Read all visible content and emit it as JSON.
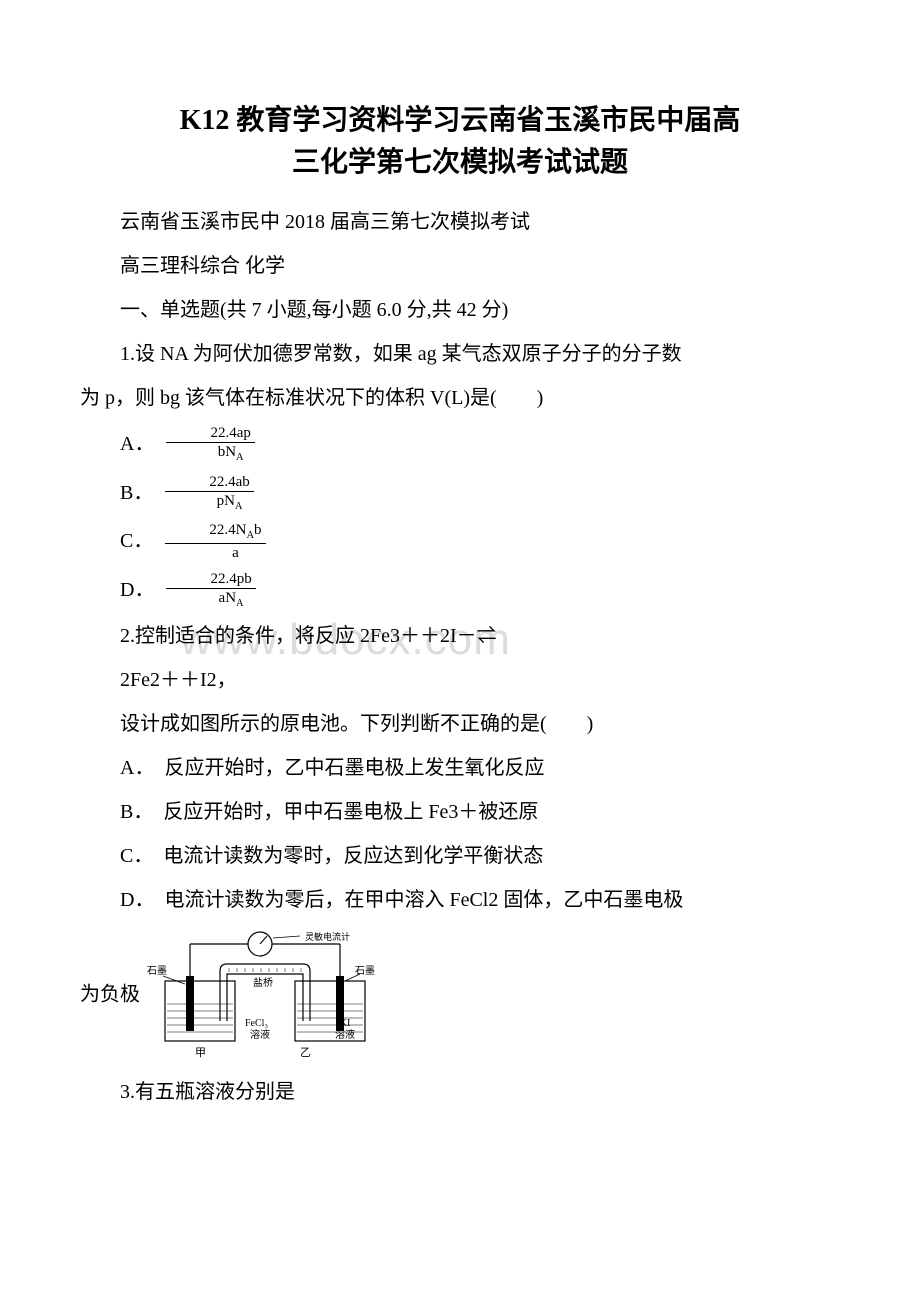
{
  "title_line1": "K12 教育学习资料学习云南省玉溪市民中届高",
  "title_line2": "三化学第七次模拟考试试题",
  "intro1": "云南省玉溪市民中 2018 届高三第七次模拟考试",
  "intro2": "高三理科综合 化学",
  "section_header": "一、单选题(共 7 小题,每小题 6.0 分,共 42 分)",
  "q1_line1": "1.设 NA 为阿伏加德罗常数，如果 ag 某气态双原子分子的分子数",
  "q1_line2": "为 p，则 bg 该气体在标准状况下的体积 V(L)是(　　)",
  "q1_optA_label": "A．",
  "q1_optA_num": "22.4ap",
  "q1_optA_den_html": "bN<sub class='sub'>A</sub>",
  "q1_optB_label": "B．",
  "q1_optB_num": "22.4ab",
  "q1_optB_den_html": "pN<sub class='sub'>A</sub>",
  "q1_optC_label": "C．",
  "q1_optC_num_html": "22.4N<sub class='sub'>A</sub>b",
  "q1_optC_den": "a",
  "q1_optD_label": "D．",
  "q1_optD_num": "22.4pb",
  "q1_optD_den_html": "aN<sub class='sub'>A</sub>",
  "q2_line1": "2.控制适合的条件，将反应 2Fe3＋＋2I－⇌",
  "q2_line2": "2Fe2＋＋I2，",
  "q2_line3": "设计成如图所示的原电池。下列判断不正确的是(　　)",
  "q2_optA": "A．　反应开始时，乙中石墨电极上发生氧化反应",
  "q2_optB": "B．　反应开始时，甲中石墨电极上 Fe3＋被还原",
  "q2_optC": "C．　电流计读数为零时，反应达到化学平衡状态",
  "q2_optD_line1": "D．　电流计读数为零后，在甲中溶入 FeCl2 固体，乙中石墨电极",
  "q2_optD_line2": "为负极",
  "q3": "3.有五瓶溶液分别是",
  "watermark": "www.bdocx.com",
  "circuit_labels": {
    "meter": "灵敏电流计",
    "graphite_left": "石墨",
    "graphite_right": "石墨",
    "bridge": "盐桥",
    "sol_left1": "FeCl₃",
    "sol_left2": "溶液",
    "sol_right1": "KI",
    "sol_right2": "溶液",
    "cup_left": "甲",
    "cup_right": "乙"
  },
  "styles": {
    "title_fontsize": 28,
    "body_fontsize": 20,
    "fraction_fontsize": 15,
    "text_color": "#000000",
    "watermark_color": "#dcdcdc",
    "background_color": "#ffffff"
  }
}
